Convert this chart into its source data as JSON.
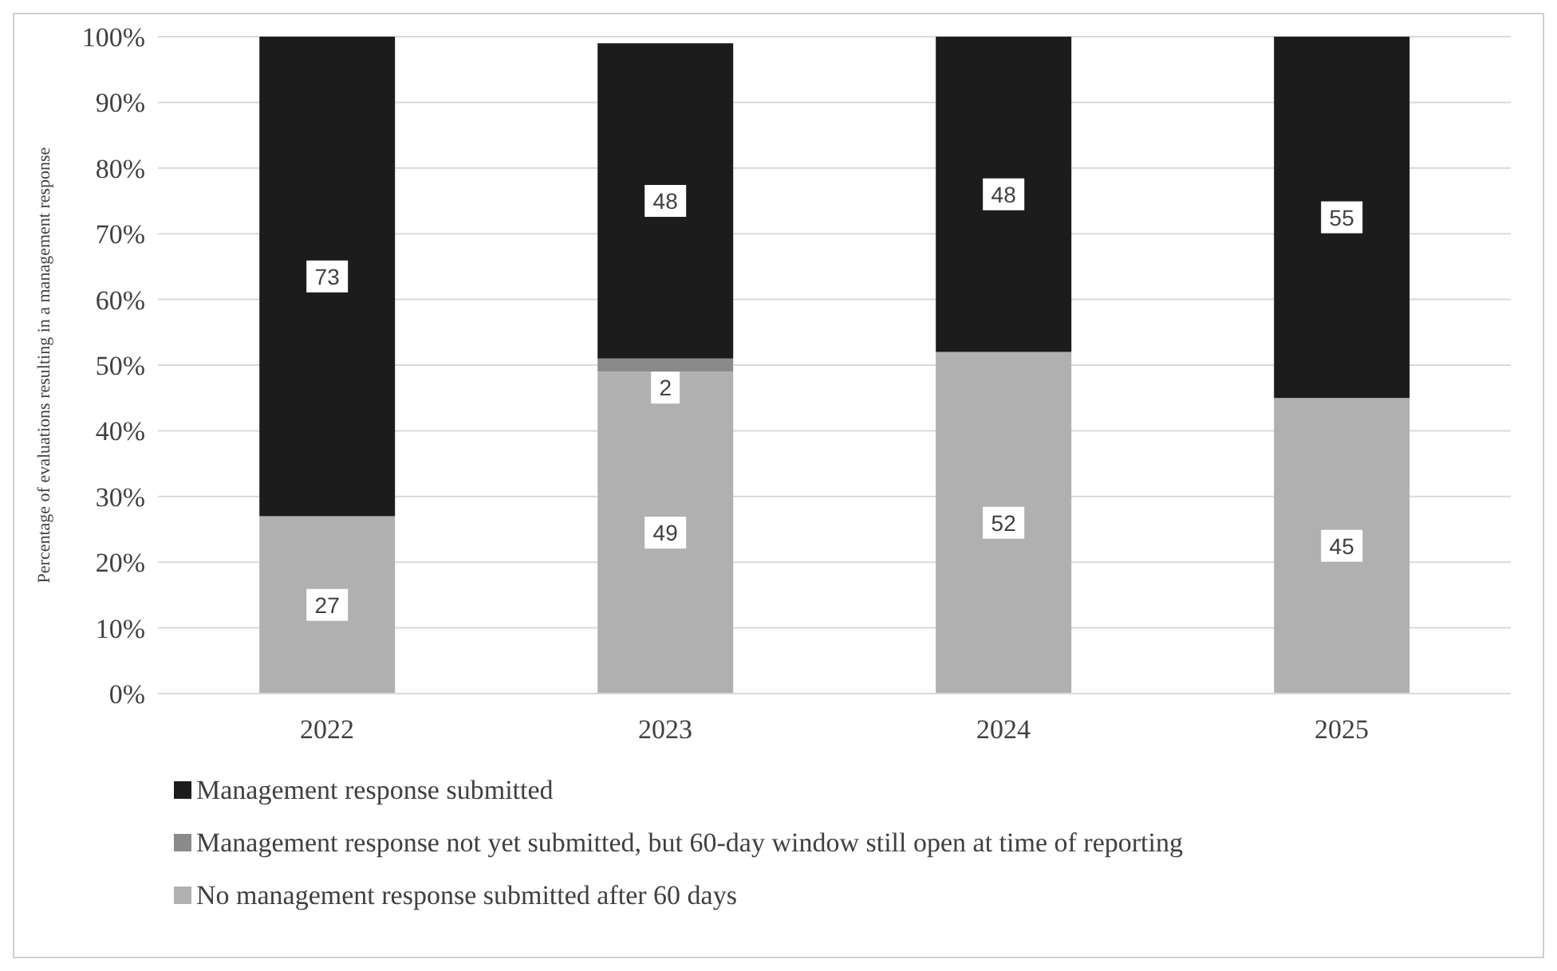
{
  "chart_data": {
    "type": "bar",
    "stacked": true,
    "ylabel": "Percentage of evaluations resulting in a management response",
    "categories": [
      "2022",
      "2023",
      "2024",
      "2025"
    ],
    "series": [
      {
        "name": "No management response submitted after 60 days",
        "color": "#b0b0b0",
        "values": [
          27,
          49,
          52,
          45
        ]
      },
      {
        "name": "Management response not yet submitted, but 60-day window still open at time of reporting",
        "color": "#8a8a8a",
        "values": [
          null,
          2,
          null,
          null
        ]
      },
      {
        "name": "Management response submitted",
        "color": "#1c1c1c",
        "values": [
          73,
          48,
          48,
          55
        ]
      }
    ],
    "ylim": [
      0,
      100
    ],
    "yticks": [
      {
        "value": 0,
        "label": "0%"
      },
      {
        "value": 10,
        "label": "10%"
      },
      {
        "value": 20,
        "label": "20%"
      },
      {
        "value": 30,
        "label": "30%"
      },
      {
        "value": 40,
        "label": "40%"
      },
      {
        "value": 50,
        "label": "50%"
      },
      {
        "value": 60,
        "label": "60%"
      },
      {
        "value": 70,
        "label": "70%"
      },
      {
        "value": 80,
        "label": "80%"
      },
      {
        "value": 90,
        "label": "90%"
      },
      {
        "value": 100,
        "label": "100%"
      }
    ],
    "grid": "y",
    "legend": "bottom",
    "data_labels": true
  }
}
